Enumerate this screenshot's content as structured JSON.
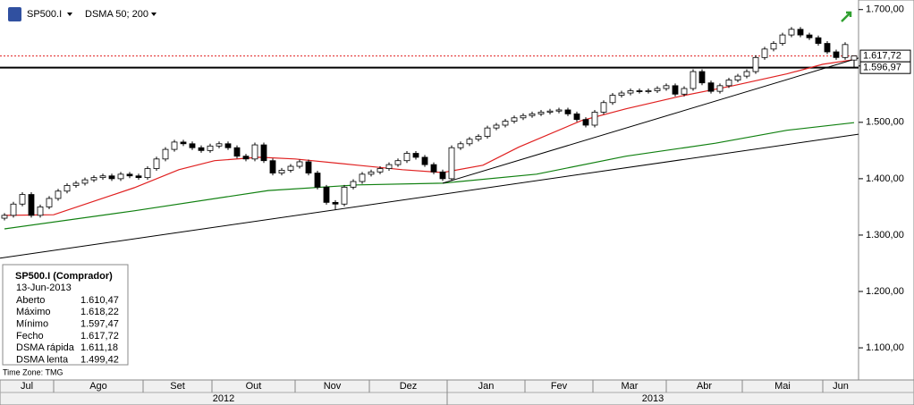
{
  "toolbar": {
    "symbol": "SP500.I",
    "indicator": "DSMA 50; 200"
  },
  "chart_data": {
    "type": "candlestick",
    "xlim": [
      -0.5,
      95.5
    ],
    "ylim": [
      1043,
      1717
    ],
    "yticks": [
      {
        "value": 1100,
        "label": "1.100,00"
      },
      {
        "value": 1200,
        "label": "1.200,00"
      },
      {
        "value": 1300,
        "label": "1.300,00"
      },
      {
        "value": 1400,
        "label": "1.400,00"
      },
      {
        "value": 1500,
        "label": "1.500,00"
      },
      {
        "value": 1600,
        "label": "1.600,00"
      },
      {
        "value": 1700,
        "label": "1.700,00"
      }
    ],
    "months": {
      "labels": [
        "Jul",
        "Ago",
        "Set",
        "Out",
        "Nov",
        "Dez",
        "Jan",
        "Fev",
        "Mar",
        "Abr",
        "Mai",
        "Jun"
      ],
      "bounds": [
        5.5,
        15.5,
        23.2,
        32.5,
        40.8,
        49.5,
        58.2,
        65.8,
        74,
        82.5,
        91.5
      ]
    },
    "years": {
      "labels": [
        "2012",
        "2013"
      ],
      "bounds": [
        49.5
      ]
    },
    "candles": [
      [
        1330,
        1339,
        1326,
        1335
      ],
      [
        1335,
        1359,
        1331,
        1355
      ],
      [
        1355,
        1376,
        1351,
        1372
      ],
      [
        1372,
        1376,
        1331,
        1335
      ],
      [
        1335,
        1354,
        1331,
        1350
      ],
      [
        1350,
        1369,
        1346,
        1365
      ],
      [
        1365,
        1382,
        1361,
        1378
      ],
      [
        1378,
        1392,
        1374,
        1388
      ],
      [
        1388,
        1396,
        1384,
        1392
      ],
      [
        1392,
        1402,
        1388,
        1398
      ],
      [
        1398,
        1406,
        1394,
        1402
      ],
      [
        1402,
        1409,
        1398,
        1405
      ],
      [
        1405,
        1409,
        1396,
        1400
      ],
      [
        1400,
        1412,
        1396,
        1408
      ],
      [
        1408,
        1412,
        1401,
        1405
      ],
      [
        1405,
        1409,
        1398,
        1402
      ],
      [
        1402,
        1422,
        1398,
        1418
      ],
      [
        1418,
        1439,
        1414,
        1435
      ],
      [
        1435,
        1456,
        1431,
        1452
      ],
      [
        1452,
        1469,
        1448,
        1465
      ],
      [
        1465,
        1469,
        1458,
        1462
      ],
      [
        1462,
        1466,
        1451,
        1455
      ],
      [
        1455,
        1459,
        1446,
        1450
      ],
      [
        1450,
        1462,
        1446,
        1458
      ],
      [
        1458,
        1466,
        1454,
        1462
      ],
      [
        1462,
        1466,
        1451,
        1455
      ],
      [
        1455,
        1459,
        1436,
        1440
      ],
      [
        1440,
        1444,
        1431,
        1435
      ],
      [
        1435,
        1464,
        1431,
        1460
      ],
      [
        1460,
        1464,
        1428,
        1432
      ],
      [
        1432,
        1436,
        1406,
        1410
      ],
      [
        1410,
        1419,
        1406,
        1415
      ],
      [
        1415,
        1426,
        1411,
        1422
      ],
      [
        1422,
        1434,
        1418,
        1430
      ],
      [
        1430,
        1434,
        1406,
        1410
      ],
      [
        1410,
        1414,
        1381,
        1385
      ],
      [
        1385,
        1389,
        1354,
        1358
      ],
      [
        1358,
        1362,
        1345,
        1355
      ],
      [
        1355,
        1389,
        1351,
        1385
      ],
      [
        1385,
        1399,
        1381,
        1395
      ],
      [
        1395,
        1412,
        1391,
        1408
      ],
      [
        1408,
        1416,
        1404,
        1412
      ],
      [
        1412,
        1422,
        1408,
        1418
      ],
      [
        1418,
        1429,
        1414,
        1425
      ],
      [
        1425,
        1436,
        1421,
        1432
      ],
      [
        1432,
        1449,
        1428,
        1445
      ],
      [
        1445,
        1449,
        1434,
        1438
      ],
      [
        1438,
        1442,
        1421,
        1425
      ],
      [
        1425,
        1429,
        1408,
        1412
      ],
      [
        1412,
        1416,
        1396,
        1400
      ],
      [
        1400,
        1459,
        1396,
        1455
      ],
      [
        1455,
        1466,
        1451,
        1462
      ],
      [
        1462,
        1474,
        1458,
        1470
      ],
      [
        1470,
        1479,
        1466,
        1475
      ],
      [
        1475,
        1494,
        1471,
        1490
      ],
      [
        1490,
        1499,
        1486,
        1495
      ],
      [
        1495,
        1506,
        1491,
        1502
      ],
      [
        1502,
        1512,
        1498,
        1508
      ],
      [
        1508,
        1516,
        1504,
        1512
      ],
      [
        1512,
        1519,
        1508,
        1515
      ],
      [
        1515,
        1522,
        1511,
        1518
      ],
      [
        1518,
        1524,
        1514,
        1520
      ],
      [
        1520,
        1526,
        1516,
        1522
      ],
      [
        1522,
        1526,
        1511,
        1515
      ],
      [
        1515,
        1519,
        1501,
        1505
      ],
      [
        1505,
        1509,
        1491,
        1495
      ],
      [
        1495,
        1522,
        1491,
        1518
      ],
      [
        1518,
        1539,
        1514,
        1535
      ],
      [
        1535,
        1552,
        1531,
        1548
      ],
      [
        1548,
        1556,
        1544,
        1552
      ],
      [
        1552,
        1560,
        1548,
        1556
      ],
      [
        1556,
        1560,
        1551,
        1555
      ],
      [
        1555,
        1560,
        1551,
        1556
      ],
      [
        1556,
        1564,
        1552,
        1560
      ],
      [
        1560,
        1569,
        1556,
        1565
      ],
      [
        1565,
        1569,
        1546,
        1550
      ],
      [
        1550,
        1564,
        1546,
        1560
      ],
      [
        1560,
        1594,
        1556,
        1590
      ],
      [
        1590,
        1594,
        1566,
        1570
      ],
      [
        1570,
        1574,
        1551,
        1555
      ],
      [
        1555,
        1569,
        1551,
        1565
      ],
      [
        1565,
        1579,
        1561,
        1575
      ],
      [
        1575,
        1586,
        1571,
        1582
      ],
      [
        1582,
        1594,
        1578,
        1590
      ],
      [
        1590,
        1619,
        1586,
        1615
      ],
      [
        1615,
        1634,
        1611,
        1630
      ],
      [
        1630,
        1644,
        1626,
        1640
      ],
      [
        1640,
        1659,
        1636,
        1655
      ],
      [
        1655,
        1669,
        1651,
        1665
      ],
      [
        1665,
        1669,
        1651,
        1655
      ],
      [
        1655,
        1659,
        1646,
        1650
      ],
      [
        1650,
        1654,
        1636,
        1640
      ],
      [
        1640,
        1644,
        1621,
        1625
      ],
      [
        1625,
        1629,
        1611,
        1615
      ],
      [
        1615,
        1642,
        1611,
        1638
      ],
      [
        1610.47,
        1618.22,
        1597.47,
        1617.72
      ]
    ],
    "up_color": "#ffffff",
    "down_color": "#000000",
    "series": [
      {
        "name": "DSMA rápida",
        "color": "#e02020",
        "x": [
          0,
          5.5,
          14.5,
          19.5,
          23.5,
          28.5,
          32.5,
          39.5,
          44.5,
          49,
          53.5,
          57.5,
          64.5,
          69.5,
          75.5,
          81.5,
          87.5,
          91.5,
          95
        ],
        "values": [
          1335,
          1336,
          1384,
          1416,
          1432,
          1438,
          1435,
          1424,
          1416,
          1411,
          1424,
          1456,
          1503,
          1524,
          1546,
          1565,
          1586,
          1603,
          1611.18
        ]
      },
      {
        "name": "DSMA lenta",
        "color": "#108010",
        "x": [
          0,
          14.5,
          29.5,
          39.5,
          49,
          59.5,
          69.5,
          79.5,
          87.5,
          95
        ],
        "values": [
          1311,
          1343,
          1379,
          1389,
          1392,
          1408,
          1440,
          1463,
          1486,
          1499.42
        ]
      }
    ],
    "trendlines": [
      {
        "color": "#000000",
        "x": [
          -0.5,
          95.5
        ],
        "values": [
          1259,
          1479
        ]
      },
      {
        "color": "#000000",
        "x": [
          49,
          95.5
        ],
        "values": [
          1392,
          1614
        ]
      }
    ],
    "hlines": [
      {
        "value": 1617.72,
        "label": "1.617,72",
        "color": "#e02020",
        "style": "dotted"
      },
      {
        "value": 1596.97,
        "label": "1.596,97",
        "color": "#000000",
        "style": "solid"
      }
    ]
  },
  "info": {
    "title": "SP500.I (Comprador)",
    "date": "13-Jun-2013",
    "rows": [
      {
        "label": "Aberto",
        "value": "1.610,47",
        "color": "#000000"
      },
      {
        "label": "Máximo",
        "value": "1.618,22",
        "color": "#000000"
      },
      {
        "label": "Mínimo",
        "value": "1.597,47",
        "color": "#000000"
      },
      {
        "label": "Fecho",
        "value": "1.617,72",
        "color": "#000000"
      },
      {
        "label": "DSMA rápida",
        "value": "1.611,18",
        "color": "#e02020"
      },
      {
        "label": "DSMA lenta",
        "value": "1.499,42",
        "color": "#108010"
      }
    ],
    "timezone": "Time Zone: TMG"
  }
}
